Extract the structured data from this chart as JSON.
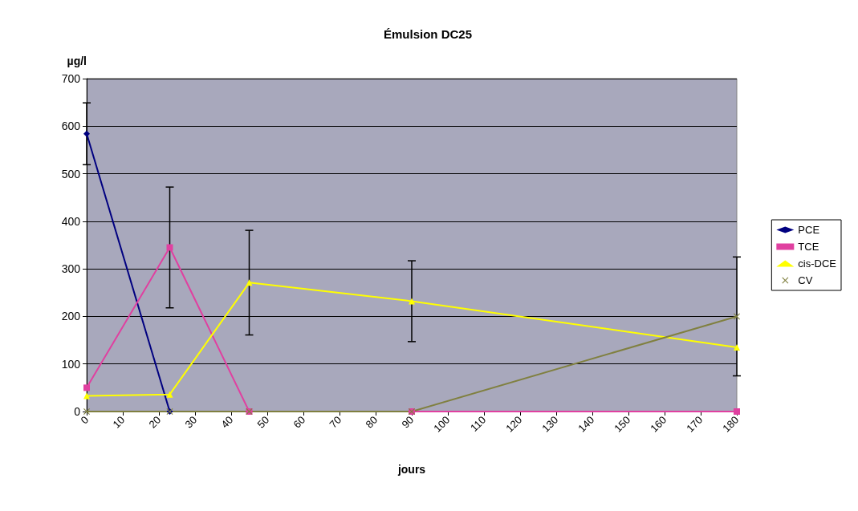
{
  "chart_data": {
    "type": "line",
    "title": "Émulsion DC25",
    "ylabel": "µg/l",
    "xlabel": "jours",
    "x": [
      0,
      23,
      45,
      90,
      180
    ],
    "series": [
      {
        "name": "PCE",
        "color": "#000080",
        "marker": "diamond",
        "values": [
          584,
          0,
          null,
          null,
          null
        ],
        "errors": [
          65,
          null,
          null,
          null,
          null
        ]
      },
      {
        "name": "TCE",
        "color": "#e040a0",
        "marker": "square",
        "values": [
          50,
          345,
          0,
          0,
          0
        ],
        "errors": [
          null,
          127,
          null,
          null,
          null
        ]
      },
      {
        "name": "cis-DCE",
        "color": "#ffff00",
        "marker": "triangle",
        "values": [
          33,
          36,
          271,
          232,
          135
        ],
        "errors": [
          null,
          null,
          110,
          85,
          null
        ]
      },
      {
        "name": "CV",
        "color": "#808040",
        "marker": "cross",
        "values": [
          0,
          0,
          0,
          0,
          200
        ],
        "errors": [
          null,
          null,
          null,
          null,
          125
        ]
      }
    ],
    "xlim": [
      0,
      180
    ],
    "xticks": [
      0,
      10,
      20,
      30,
      40,
      50,
      60,
      70,
      80,
      90,
      100,
      110,
      120,
      130,
      140,
      150,
      160,
      170,
      180
    ],
    "ylim": [
      0,
      700
    ],
    "yticks": [
      0,
      100,
      200,
      300,
      400,
      500,
      600,
      700
    ],
    "grid": "y",
    "legend": "right"
  }
}
